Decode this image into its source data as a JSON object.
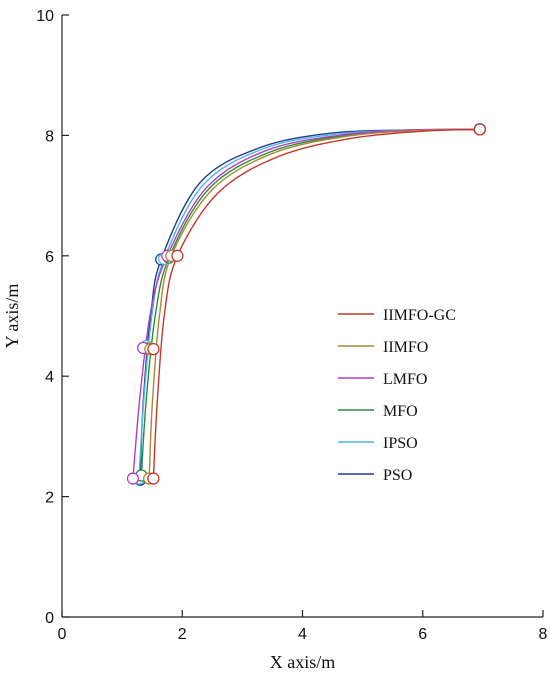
{
  "chart_data": {
    "type": "line",
    "title": "",
    "xlabel": "X axis/m",
    "ylabel": "Y axis/m",
    "xlim": [
      0,
      8
    ],
    "ylim": [
      0,
      10
    ],
    "xticks": [
      "0",
      "2",
      "4",
      "6",
      "8"
    ],
    "yticks": [
      "0",
      "2",
      "4",
      "6",
      "8",
      "10"
    ],
    "grid": false,
    "legend_position": "right",
    "series": [
      {
        "name": "IIMFO-GC",
        "color": "#c0392b",
        "x": [
          1.52,
          1.58,
          1.7,
          1.92,
          2.6,
          3.6,
          4.8,
          6.0,
          6.95
        ],
        "y": [
          2.3,
          3.5,
          5.0,
          6.0,
          7.05,
          7.65,
          7.95,
          8.07,
          8.1
        ],
        "waypoints_x": [
          1.52,
          1.52,
          1.92,
          6.95
        ],
        "waypoints_y": [
          2.3,
          4.45,
          6.0,
          8.1
        ]
      },
      {
        "name": "IIMFO",
        "color": "#a88a30",
        "x": [
          1.45,
          1.5,
          1.62,
          1.82,
          2.5,
          3.5,
          4.7,
          5.9,
          6.95
        ],
        "y": [
          2.3,
          3.5,
          5.0,
          6.0,
          7.1,
          7.7,
          7.98,
          8.08,
          8.1
        ],
        "waypoints_x": [
          1.45,
          1.47,
          1.82,
          6.95
        ],
        "waypoints_y": [
          2.3,
          4.45,
          6.0,
          8.1
        ]
      },
      {
        "name": "LMFO",
        "color": "#b23cc8",
        "x": [
          1.18,
          1.3,
          1.48,
          1.75,
          2.42,
          3.4,
          4.6,
          5.8,
          6.95
        ],
        "y": [
          2.3,
          3.7,
          5.1,
          6.0,
          7.15,
          7.75,
          8.0,
          8.09,
          8.1
        ],
        "waypoints_x": [
          1.18,
          1.35,
          1.75,
          6.95
        ],
        "waypoints_y": [
          2.3,
          4.47,
          6.0,
          8.1
        ]
      },
      {
        "name": "MFO",
        "color": "#2e8b3e",
        "x": [
          1.32,
          1.4,
          1.55,
          1.78,
          2.45,
          3.45,
          4.65,
          5.85,
          6.95
        ],
        "y": [
          2.35,
          3.6,
          5.0,
          5.97,
          7.12,
          7.72,
          7.99,
          8.08,
          8.1
        ],
        "waypoints_x": [
          1.32,
          1.42,
          1.78,
          6.95
        ],
        "waypoints_y": [
          2.35,
          4.46,
          5.97,
          8.1
        ]
      },
      {
        "name": "IPSO",
        "color": "#4fb6e0",
        "x": [
          1.28,
          1.36,
          1.5,
          1.7,
          2.35,
          3.35,
          4.55,
          5.8,
          6.95
        ],
        "y": [
          2.3,
          3.6,
          5.05,
          5.95,
          7.18,
          7.78,
          8.02,
          8.09,
          8.1
        ],
        "waypoints_x": [
          1.28,
          1.4,
          1.7,
          6.95
        ],
        "waypoints_y": [
          2.3,
          4.5,
          5.95,
          8.1
        ]
      },
      {
        "name": "PSO",
        "color": "#1f3f8f",
        "x": [
          1.3,
          1.35,
          1.48,
          1.65,
          2.3,
          3.3,
          4.5,
          5.75,
          6.95
        ],
        "y": [
          2.28,
          3.55,
          5.05,
          5.94,
          7.22,
          7.8,
          8.04,
          8.09,
          8.1
        ],
        "waypoints_x": [
          1.3,
          1.38,
          1.65,
          6.95
        ],
        "waypoints_y": [
          2.28,
          4.48,
          5.94,
          8.1
        ]
      }
    ]
  }
}
